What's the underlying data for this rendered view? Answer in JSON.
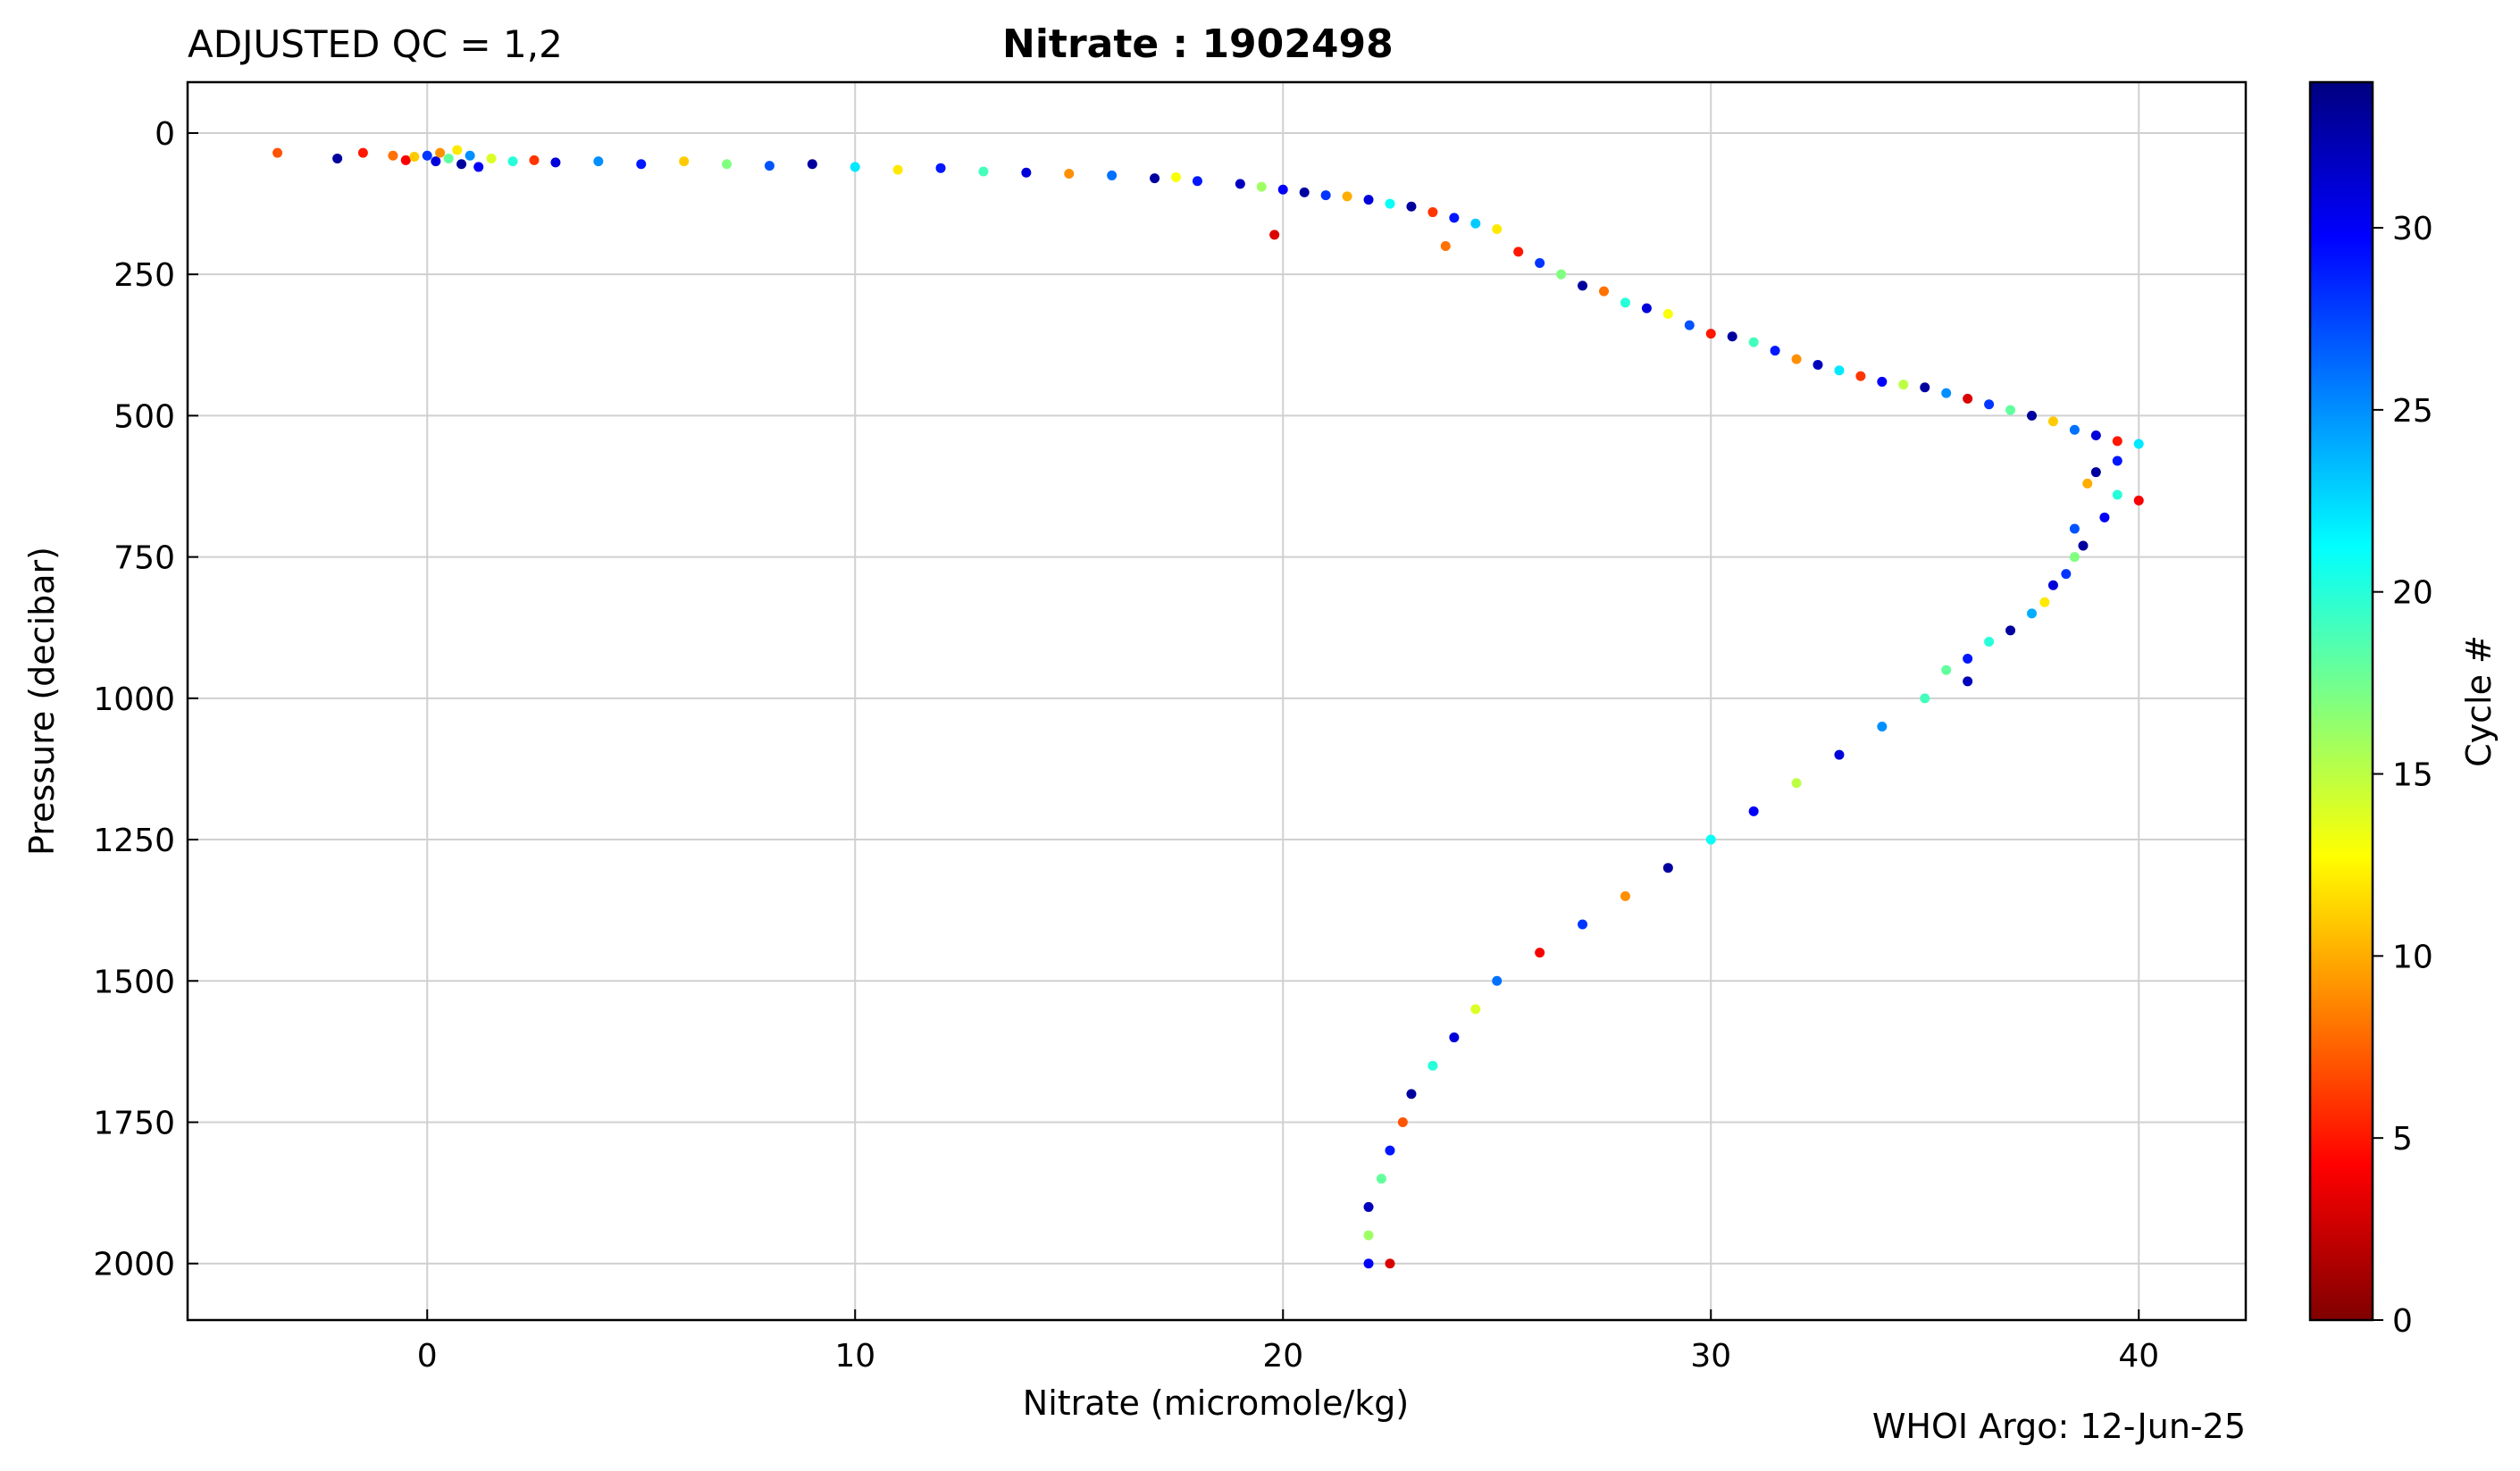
{
  "header": {
    "qc_label": "ADJUSTED QC = 1,2",
    "title": "Nitrate : 1902498"
  },
  "footer": {
    "credit": "WHOI Argo: 12-Jun-25"
  },
  "chart_data": {
    "type": "scatter",
    "xlabel": "Nitrate  (micromole/kg)",
    "ylabel": "Pressure  (decibar)",
    "xlim": [
      -5.6,
      42.5
    ],
    "ylim": [
      2100,
      -90
    ],
    "y_inverted": true,
    "grid": true,
    "x_ticks": [
      0,
      10,
      20,
      30,
      40
    ],
    "y_ticks": [
      0,
      250,
      500,
      750,
      1000,
      1250,
      1500,
      1750,
      2000
    ],
    "colorbar": {
      "label": "Cycle #",
      "range": [
        0,
        34
      ],
      "ticks": [
        0,
        5,
        10,
        15,
        20,
        25,
        30
      ],
      "colormap": "jet",
      "colors": [
        "#800000",
        "#ff0000",
        "#ff8000",
        "#ffff00",
        "#80ff80",
        "#00ffff",
        "#0080ff",
        "#0000ff",
        "#000080"
      ]
    },
    "series": [
      {
        "color_by": "cycle",
        "points": [
          [
            -3.5,
            35,
            7
          ],
          [
            -2.1,
            45,
            33
          ],
          [
            -1.5,
            35,
            5
          ],
          [
            -0.8,
            40,
            8
          ],
          [
            -0.5,
            48,
            4
          ],
          [
            -0.3,
            42,
            11
          ],
          [
            0,
            40,
            28
          ],
          [
            0.2,
            50,
            31
          ],
          [
            0.3,
            35,
            9
          ],
          [
            0.5,
            45,
            18
          ],
          [
            0.7,
            30,
            12
          ],
          [
            0.8,
            55,
            33
          ],
          [
            1.0,
            40,
            25
          ],
          [
            1.2,
            60,
            30
          ],
          [
            1.5,
            45,
            14
          ],
          [
            2.0,
            50,
            20
          ],
          [
            2.5,
            48,
            6
          ],
          [
            3.0,
            52,
            31
          ],
          [
            4.0,
            50,
            25
          ],
          [
            5.0,
            55,
            29
          ],
          [
            6.0,
            50,
            11
          ],
          [
            7.0,
            55,
            17
          ],
          [
            8.0,
            58,
            27
          ],
          [
            9.0,
            55,
            33
          ],
          [
            10.0,
            60,
            22
          ],
          [
            11.0,
            65,
            12
          ],
          [
            12.0,
            62,
            29
          ],
          [
            13.0,
            68,
            19
          ],
          [
            14.0,
            70,
            31
          ],
          [
            15.0,
            72,
            9
          ],
          [
            16.0,
            75,
            26
          ],
          [
            17.0,
            80,
            33
          ],
          [
            17.5,
            78,
            13
          ],
          [
            18.0,
            85,
            29
          ],
          [
            19.0,
            90,
            32
          ],
          [
            19.5,
            95,
            16
          ],
          [
            20.0,
            100,
            30
          ],
          [
            20.5,
            105,
            33
          ],
          [
            21.0,
            110,
            28
          ],
          [
            21.5,
            112,
            10
          ],
          [
            22.0,
            118,
            31
          ],
          [
            22.5,
            125,
            21
          ],
          [
            23.0,
            130,
            33
          ],
          [
            23.5,
            140,
            6
          ],
          [
            24.0,
            150,
            29
          ],
          [
            24.5,
            160,
            23
          ],
          [
            25.0,
            170,
            12
          ],
          [
            19.8,
            180,
            3
          ],
          [
            23.8,
            200,
            8
          ],
          [
            25.5,
            210,
            5
          ],
          [
            26.0,
            230,
            28
          ],
          [
            26.5,
            250,
            17
          ],
          [
            27.0,
            270,
            33
          ],
          [
            27.5,
            280,
            8
          ],
          [
            28.0,
            300,
            20
          ],
          [
            28.5,
            310,
            31
          ],
          [
            29.0,
            320,
            13
          ],
          [
            29.5,
            340,
            27
          ],
          [
            30.0,
            355,
            5
          ],
          [
            30.5,
            360,
            33
          ],
          [
            31.0,
            370,
            19
          ],
          [
            31.5,
            385,
            29
          ],
          [
            32.0,
            400,
            9
          ],
          [
            32.5,
            410,
            32
          ],
          [
            33.0,
            420,
            22
          ],
          [
            33.5,
            430,
            6
          ],
          [
            34.0,
            440,
            30
          ],
          [
            34.5,
            445,
            15
          ],
          [
            35.0,
            450,
            33
          ],
          [
            35.5,
            460,
            25
          ],
          [
            36.0,
            470,
            3
          ],
          [
            36.5,
            480,
            28
          ],
          [
            37.0,
            490,
            18
          ],
          [
            37.5,
            500,
            33
          ],
          [
            38.0,
            510,
            11
          ],
          [
            38.5,
            525,
            26
          ],
          [
            39.0,
            535,
            31
          ],
          [
            39.5,
            545,
            5
          ],
          [
            40.0,
            550,
            22
          ],
          [
            39.5,
            580,
            29
          ],
          [
            39.0,
            600,
            33
          ],
          [
            38.8,
            620,
            10
          ],
          [
            39.5,
            640,
            20
          ],
          [
            40.0,
            650,
            4
          ],
          [
            39.2,
            680,
            30
          ],
          [
            38.5,
            700,
            27
          ],
          [
            38.7,
            730,
            33
          ],
          [
            38.5,
            750,
            17
          ],
          [
            38.3,
            780,
            28
          ],
          [
            38.0,
            800,
            31
          ],
          [
            37.8,
            830,
            12
          ],
          [
            37.5,
            850,
            24
          ],
          [
            37.0,
            880,
            33
          ],
          [
            36.5,
            900,
            20
          ],
          [
            36.0,
            930,
            29
          ],
          [
            35.5,
            950,
            18
          ],
          [
            36.0,
            970,
            32
          ],
          [
            35.0,
            1000,
            19
          ],
          [
            34.0,
            1050,
            25
          ],
          [
            33.0,
            1100,
            31
          ],
          [
            32.0,
            1150,
            15
          ],
          [
            31.0,
            1200,
            30
          ],
          [
            30.0,
            1250,
            21
          ],
          [
            29.0,
            1300,
            33
          ],
          [
            28.0,
            1350,
            9
          ],
          [
            27.0,
            1400,
            28
          ],
          [
            26.0,
            1450,
            4
          ],
          [
            25.0,
            1500,
            26
          ],
          [
            24.5,
            1550,
            14
          ],
          [
            24.0,
            1600,
            31
          ],
          [
            23.5,
            1650,
            20
          ],
          [
            23.0,
            1700,
            33
          ],
          [
            22.8,
            1750,
            7
          ],
          [
            22.5,
            1800,
            29
          ],
          [
            22.3,
            1850,
            18
          ],
          [
            22.0,
            1900,
            32
          ],
          [
            22.0,
            1950,
            16
          ],
          [
            22.0,
            2000,
            30
          ],
          [
            22.5,
            2000,
            3
          ]
        ]
      }
    ]
  }
}
